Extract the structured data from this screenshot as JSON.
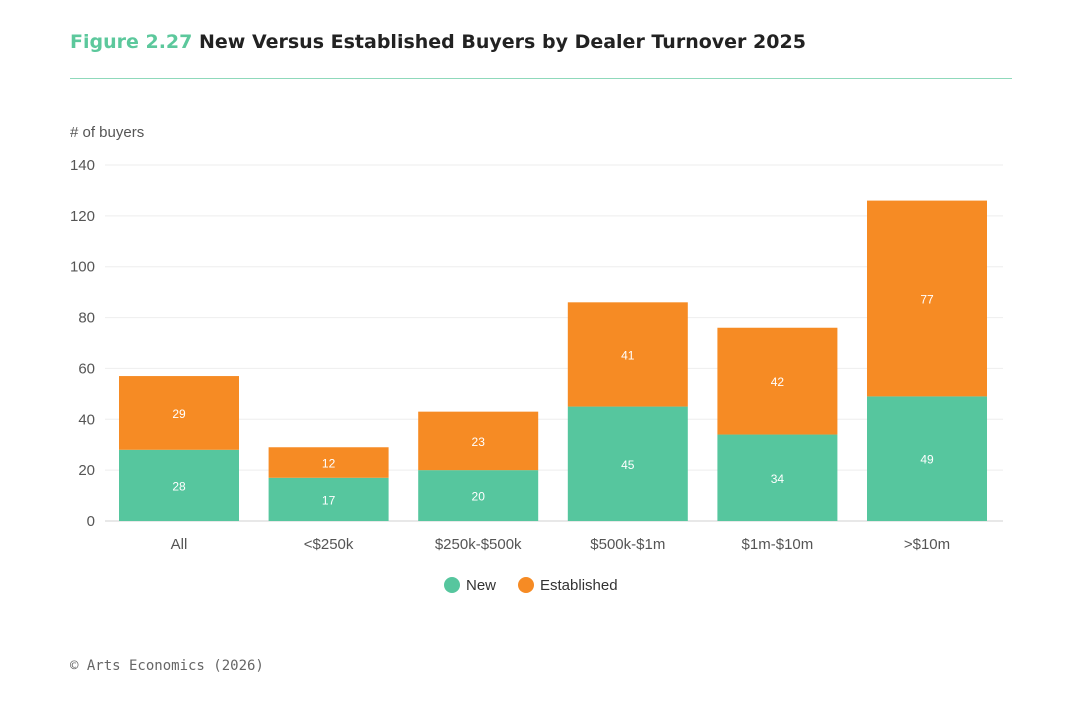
{
  "header": {
    "figure_label": "Figure 2.27",
    "title": "New Versus Established Buyers by Dealer Turnover 2025"
  },
  "chart_data": {
    "type": "bar",
    "stacked": true,
    "ylabel": "# of buyers",
    "xlabel": "",
    "ylim": [
      0,
      140
    ],
    "yticks": [
      0,
      20,
      40,
      60,
      80,
      100,
      120,
      140
    ],
    "grid": true,
    "legend_position": "bottom-center",
    "categories": [
      "All",
      "<$250k",
      "$250k-$500k",
      "$500k-$1m",
      "$1m-$10m",
      ">$10m"
    ],
    "series": [
      {
        "name": "New",
        "color": "#56c69e",
        "values": [
          28,
          17,
          20,
          45,
          34,
          49
        ]
      },
      {
        "name": "Established",
        "color": "#f68b24",
        "values": [
          29,
          12,
          23,
          41,
          42,
          77
        ]
      }
    ]
  },
  "footer": {
    "credit": "© Arts Economics (2026)"
  }
}
